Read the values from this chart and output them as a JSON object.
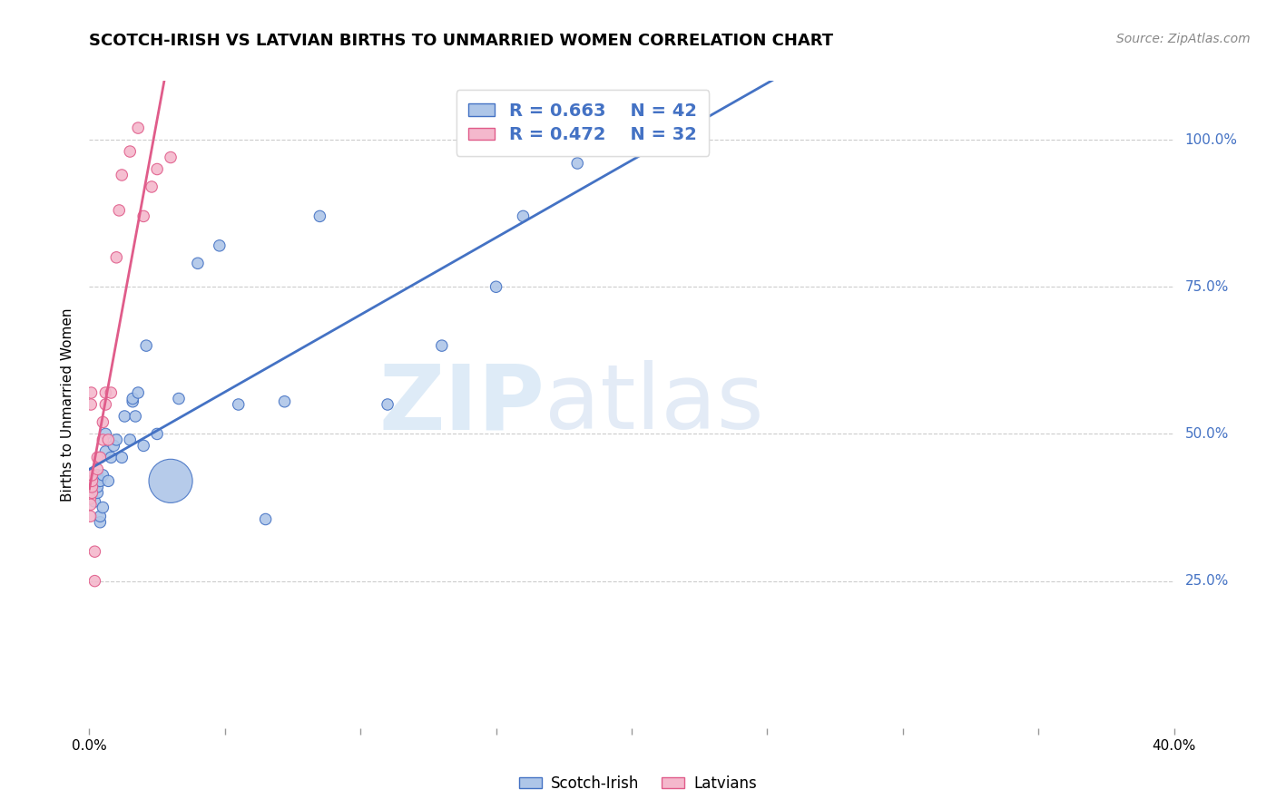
{
  "title": "SCOTCH-IRISH VS LATVIAN BIRTHS TO UNMARRIED WOMEN CORRELATION CHART",
  "source": "Source: ZipAtlas.com",
  "ylabel": "Births to Unmarried Women",
  "legend_blue_r": "R = 0.663",
  "legend_blue_n": "N = 42",
  "legend_pink_r": "R = 0.472",
  "legend_pink_n": "N = 32",
  "watermark_zip": "ZIP",
  "watermark_atlas": "atlas",
  "blue_color": "#aec6e8",
  "blue_line_color": "#4472c4",
  "pink_color": "#f4b8cc",
  "pink_line_color": "#e05c8a",
  "legend_text_color": "#4472c4",
  "background_color": "#ffffff",
  "grid_color": "#cccccc",
  "scotch_irish_x": [
    0.001,
    0.001,
    0.002,
    0.003,
    0.003,
    0.003,
    0.004,
    0.004,
    0.004,
    0.005,
    0.005,
    0.006,
    0.006,
    0.007,
    0.008,
    0.009,
    0.01,
    0.012,
    0.013,
    0.015,
    0.016,
    0.016,
    0.017,
    0.018,
    0.02,
    0.021,
    0.025,
    0.03,
    0.033,
    0.04,
    0.048,
    0.055,
    0.065,
    0.072,
    0.085,
    0.11,
    0.13,
    0.15,
    0.16,
    0.18,
    0.195,
    0.2
  ],
  "scotch_irish_y": [
    0.395,
    0.415,
    0.385,
    0.4,
    0.41,
    0.43,
    0.35,
    0.36,
    0.42,
    0.375,
    0.43,
    0.47,
    0.5,
    0.42,
    0.46,
    0.48,
    0.49,
    0.46,
    0.53,
    0.49,
    0.555,
    0.56,
    0.53,
    0.57,
    0.48,
    0.65,
    0.5,
    0.42,
    0.56,
    0.79,
    0.82,
    0.55,
    0.355,
    0.555,
    0.87,
    0.55,
    0.65,
    0.75,
    0.87,
    0.96,
    1.005,
    1.005
  ],
  "scotch_irish_size": [
    80,
    80,
    80,
    80,
    80,
    80,
    80,
    80,
    80,
    80,
    80,
    80,
    80,
    80,
    80,
    80,
    80,
    80,
    80,
    80,
    80,
    80,
    80,
    80,
    80,
    80,
    80,
    1200,
    80,
    80,
    80,
    80,
    80,
    80,
    80,
    80,
    80,
    80,
    80,
    80,
    80,
    80
  ],
  "latvian_x": [
    0.0002,
    0.0003,
    0.0004,
    0.0005,
    0.0005,
    0.0006,
    0.0007,
    0.0008,
    0.001,
    0.001,
    0.001,
    0.001,
    0.002,
    0.002,
    0.003,
    0.003,
    0.004,
    0.005,
    0.005,
    0.006,
    0.006,
    0.007,
    0.008,
    0.01,
    0.011,
    0.012,
    0.015,
    0.018,
    0.02,
    0.023,
    0.025,
    0.03
  ],
  "latvian_y": [
    0.42,
    0.39,
    0.36,
    0.38,
    0.41,
    0.55,
    0.57,
    0.43,
    0.4,
    0.41,
    0.42,
    0.43,
    0.25,
    0.3,
    0.44,
    0.46,
    0.46,
    0.49,
    0.52,
    0.55,
    0.57,
    0.49,
    0.57,
    0.8,
    0.88,
    0.94,
    0.98,
    1.02,
    0.87,
    0.92,
    0.95,
    0.97
  ],
  "latvian_size": [
    80,
    80,
    80,
    80,
    80,
    80,
    80,
    80,
    80,
    80,
    80,
    80,
    80,
    80,
    80,
    80,
    80,
    80,
    80,
    80,
    80,
    80,
    80,
    80,
    80,
    80,
    80,
    80,
    80,
    80,
    80,
    80
  ],
  "xmin": 0.0,
  "xmax": 0.4,
  "ymin": 0.0,
  "ymax": 1.1,
  "ytick_vals": [
    0.25,
    0.5,
    0.75,
    1.0
  ],
  "ytick_labels": [
    "25.0%",
    "50.0%",
    "75.0%",
    "100.0%"
  ]
}
